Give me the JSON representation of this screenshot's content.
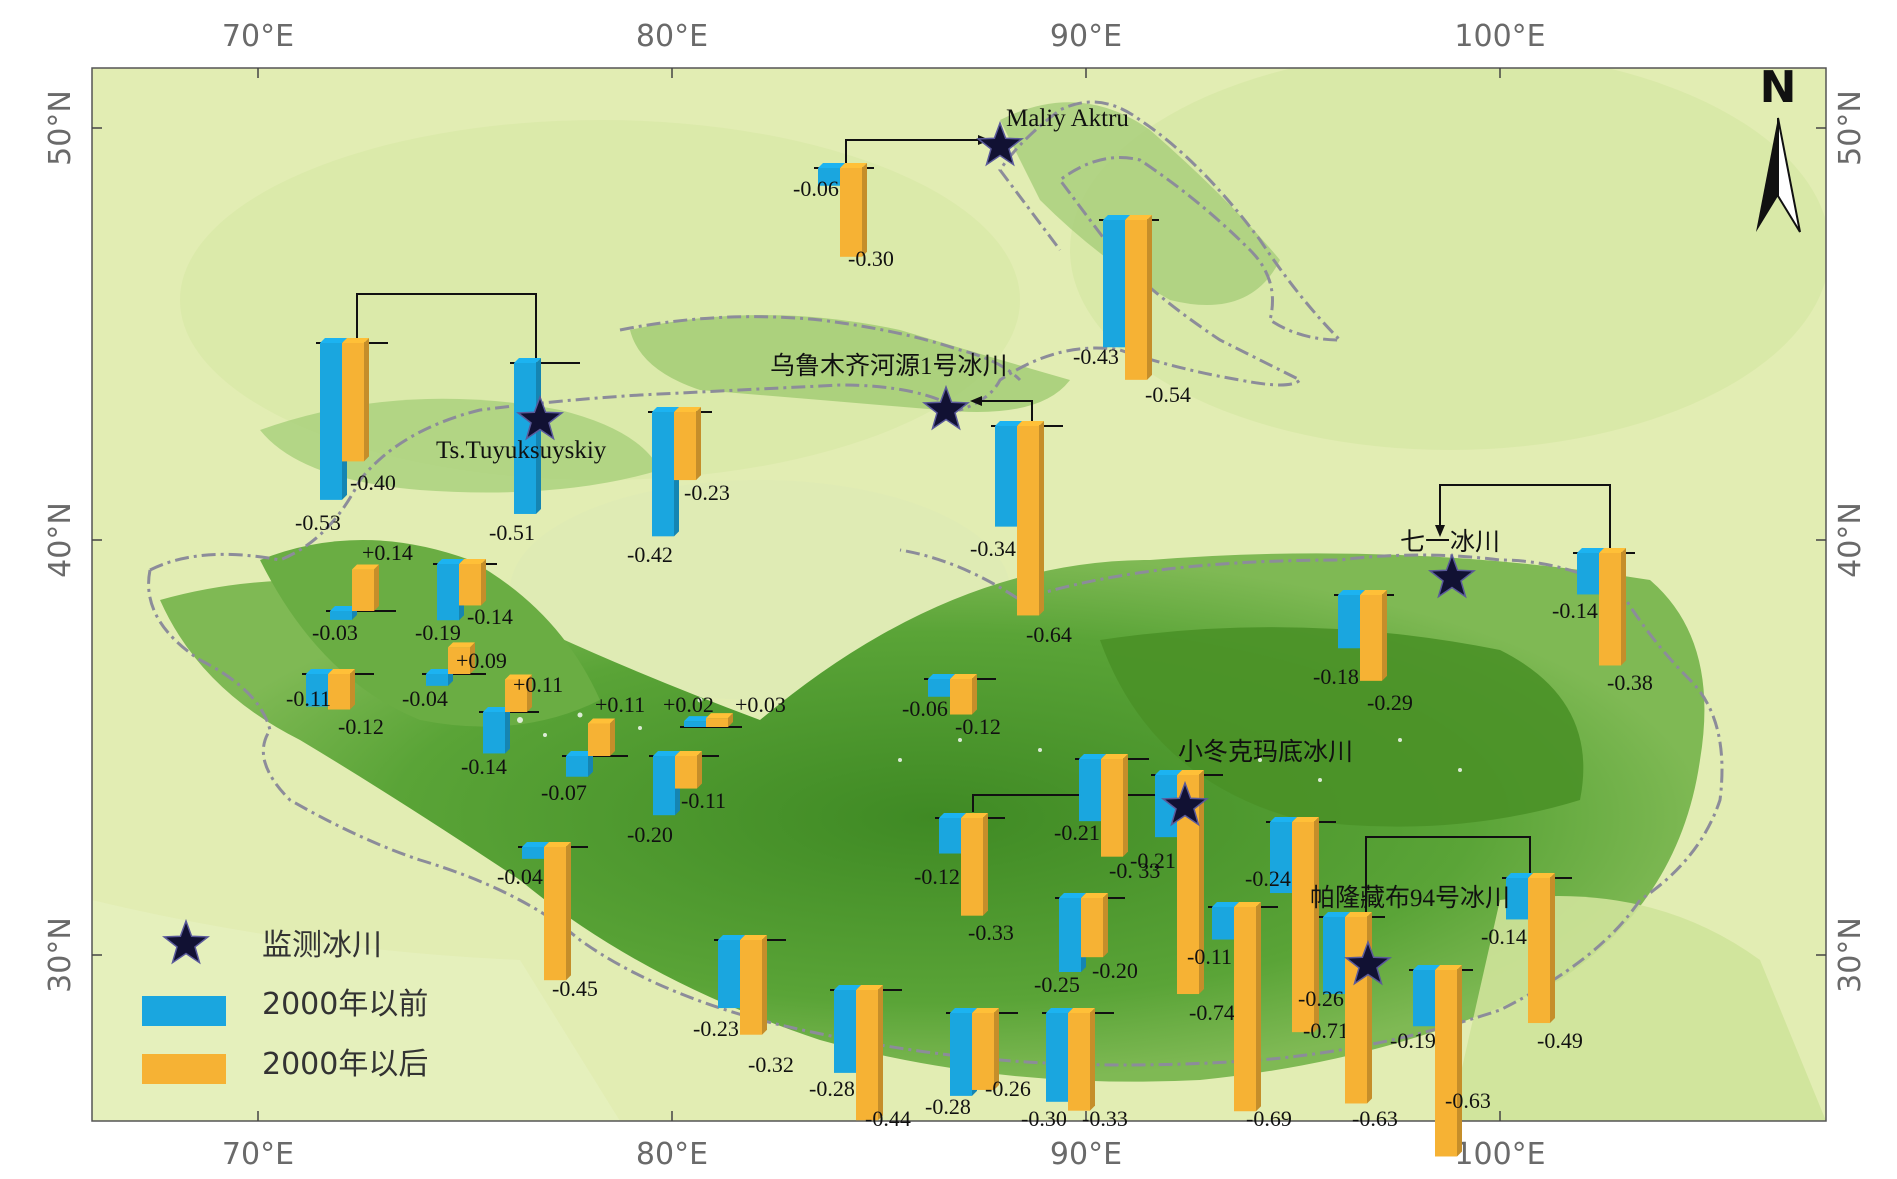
{
  "colors": {
    "before": "#1aa6df",
    "after": "#f6b234",
    "land_light": "#e5efb6",
    "land_green": "#4f9a2c",
    "boundary": "#8c8c9a",
    "star": "#111133"
  },
  "axes": {
    "top": [
      "70°E",
      "80°E",
      "90°E",
      "100°E"
    ],
    "bottom": [
      "70°E",
      "80°E",
      "90°E",
      "100°E"
    ],
    "left": [
      "50°N",
      "40°N",
      "30°N"
    ],
    "right": [
      "50°N",
      "40°N",
      "30°N"
    ]
  },
  "north": "N",
  "legend": {
    "station": "监测冰川",
    "before": "2000年以前",
    "after": "2000年以后"
  },
  "stations": [
    {
      "name": "Maliy Aktru"
    },
    {
      "name": "Ts.Tuyuksuyskiy"
    },
    {
      "name": "乌鲁木齐河源1号冰川"
    },
    {
      "name": "七一冰川"
    },
    {
      "name": "小冬克玛底冰川"
    },
    {
      "name": "帕隆藏布94号冰川"
    }
  ],
  "bars": [
    {
      "before": "-0.06",
      "after": "-0.30"
    },
    {
      "before": "-0.43",
      "after": "-0.54"
    },
    {
      "before": "-0.53",
      "after": "-0.40"
    },
    {
      "before": "-0.51",
      "after": ""
    },
    {
      "before": "-0.42",
      "after": "-0.23"
    },
    {
      "before": "-0.34",
      "after": "-0.64"
    },
    {
      "before": "-0.14",
      "after": "-0.38"
    },
    {
      "before": "-0.18",
      "after": "-0.29"
    },
    {
      "before": "-0.03",
      "after": "+0.14"
    },
    {
      "before": "-0.19",
      "after": "-0.14"
    },
    {
      "before": "-0.11",
      "after": "-0.12"
    },
    {
      "before": "-0.04",
      "after": "+0.09"
    },
    {
      "before": "-0.14",
      "after": "+0.11"
    },
    {
      "before": "-0.07",
      "after": "+0.11"
    },
    {
      "before": "+0.02",
      "after": "+0.03"
    },
    {
      "before": "-0.06",
      "after": "-0.12"
    },
    {
      "before": "-0.20",
      "after": "-0.11"
    },
    {
      "before": "-0.04",
      "after": "-0.45"
    },
    {
      "before": "-0.12",
      "after": "-0.33"
    },
    {
      "before": "-0.21",
      "after": "-0. 33"
    },
    {
      "before": "-0.21",
      "after": "-0.74"
    },
    {
      "before": "-0.24",
      "after": "-0.71"
    },
    {
      "before": "-0.14",
      "after": "-0.49"
    },
    {
      "before": "-0.25",
      "after": "-0.20"
    },
    {
      "before": "-0.11",
      "after": "-0.69"
    },
    {
      "before": "-0.26",
      "after": "-0.63"
    },
    {
      "before": "-0.19",
      "after": "-0.63"
    },
    {
      "before": "-0.23",
      "after": "-0.32"
    },
    {
      "before": "-0.28",
      "after": "-0.44"
    },
    {
      "before": "-0.28",
      "after": "-0.26"
    },
    {
      "before": "-0.30",
      "after": "-0.33"
    }
  ]
}
